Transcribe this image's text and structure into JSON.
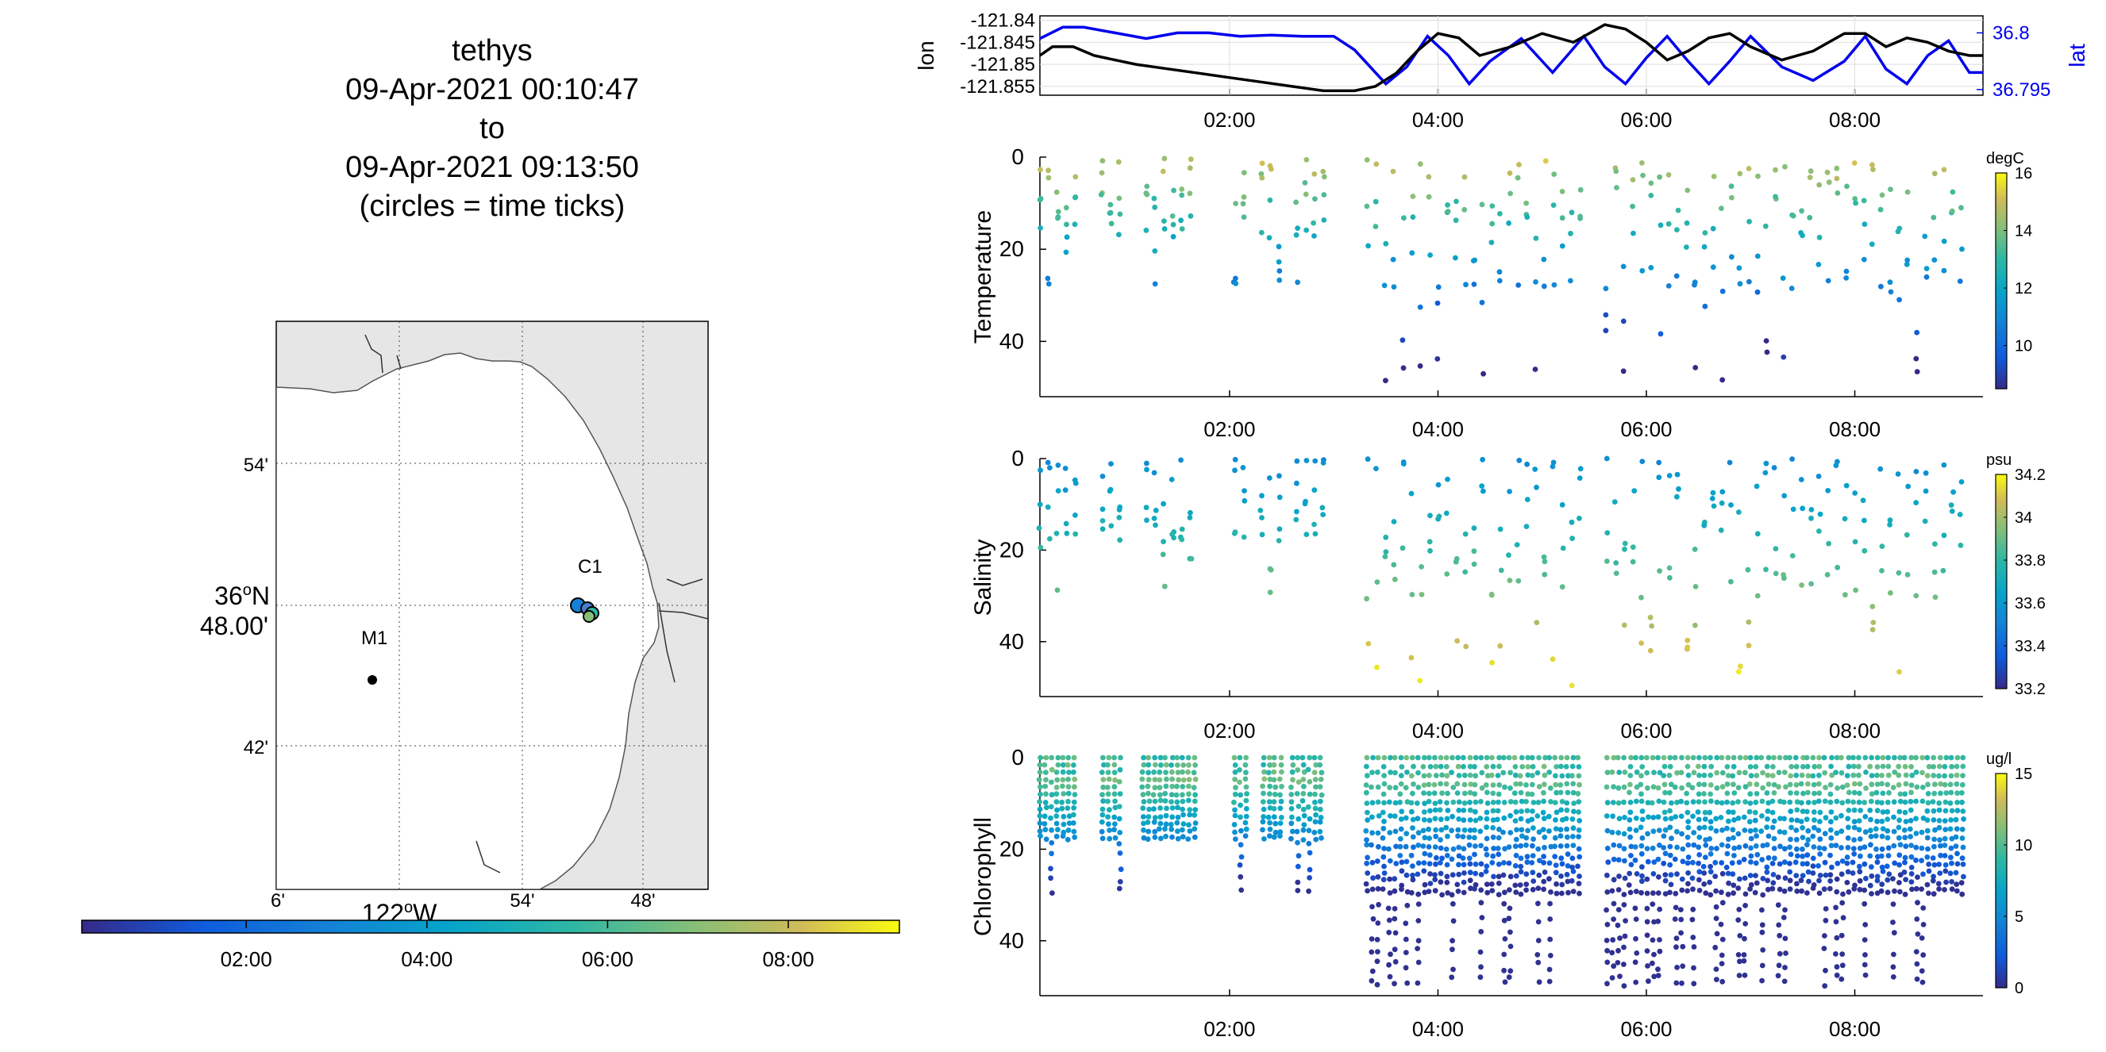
{
  "title_lines": [
    "tethys",
    "09-Apr-2021 00:10:47",
    "to",
    "09-Apr-2021 09:13:50",
    "(circles = time ticks)"
  ],
  "colors": {
    "lon": "#000000",
    "lat": "#0000ee",
    "map_land": "#e6e6e6",
    "map_water": "#ffffff"
  },
  "map": {
    "lat_ticks": [
      "54'",
      "36°N 48.00'",
      "42'"
    ],
    "lon_ticks": [
      "6'",
      "122°W",
      "54'",
      "48'"
    ],
    "lat_tick_main": "36",
    "lat_tick_deg": "o",
    "lat_tick_sub": "N",
    "lat_tick_min": "48.00'",
    "lon_tick_main": "122",
    "lon_tick_deg": "o",
    "lon_tick_sub": "W",
    "stations": [
      {
        "name": "M1"
      },
      {
        "name": "C1"
      }
    ]
  },
  "time_colorbar": {
    "ticks": [
      "02:00",
      "04:00",
      "06:00",
      "08:00"
    ],
    "range_hours": [
      0.18,
      9.23
    ]
  },
  "chart_data": [
    {
      "type": "line",
      "name": "lon-lat",
      "x_range_hours": [
        0.18,
        9.23
      ],
      "x_ticks": [
        "02:00",
        "04:00",
        "06:00",
        "08:00"
      ],
      "ylabel_left": "lon",
      "ylabel_right": "lat",
      "yticks_left": [
        "-121.84",
        "-121.845",
        "-121.85",
        "-121.855"
      ],
      "yticks_right": [
        "36.8",
        "36.795"
      ],
      "ylim_left": [
        -121.857,
        -121.839
      ],
      "ylim_right": [
        36.7945,
        36.8015
      ],
      "series": [
        {
          "name": "lon",
          "x": [
            0.18,
            0.3,
            0.5,
            0.7,
            0.9,
            1.1,
            1.4,
            1.7,
            2.0,
            2.3,
            2.6,
            2.9,
            3.2,
            3.4,
            3.6,
            3.8,
            4.0,
            4.2,
            4.4,
            4.7,
            5.0,
            5.3,
            5.6,
            5.8,
            6.0,
            6.2,
            6.4,
            6.6,
            6.8,
            7.0,
            7.3,
            7.6,
            7.9,
            8.1,
            8.3,
            8.5,
            8.7,
            8.9,
            9.1,
            9.23
          ],
          "values": [
            -121.848,
            -121.846,
            -121.846,
            -121.848,
            -121.849,
            -121.85,
            -121.851,
            -121.852,
            -121.853,
            -121.854,
            -121.855,
            -121.856,
            -121.856,
            -121.855,
            -121.852,
            -121.847,
            -121.843,
            -121.844,
            -121.848,
            -121.846,
            -121.843,
            -121.845,
            -121.841,
            -121.842,
            -121.845,
            -121.849,
            -121.847,
            -121.844,
            -121.843,
            -121.846,
            -121.849,
            -121.847,
            -121.843,
            -121.843,
            -121.846,
            -121.844,
            -121.845,
            -121.847,
            -121.848,
            -121.848
          ]
        },
        {
          "name": "lat",
          "x": [
            0.18,
            0.4,
            0.6,
            0.9,
            1.2,
            1.5,
            1.8,
            2.1,
            2.4,
            2.7,
            3.0,
            3.2,
            3.5,
            3.7,
            3.9,
            4.1,
            4.3,
            4.5,
            4.8,
            5.1,
            5.4,
            5.6,
            5.8,
            6.0,
            6.2,
            6.4,
            6.6,
            6.8,
            7.0,
            7.3,
            7.6,
            7.9,
            8.1,
            8.3,
            8.5,
            8.7,
            8.9,
            9.1,
            9.23
          ],
          "values": [
            36.7995,
            36.8005,
            36.8005,
            36.8,
            36.7995,
            36.8,
            36.8,
            36.7997,
            36.7998,
            36.7997,
            36.7997,
            36.7985,
            36.7955,
            36.797,
            36.7997,
            36.798,
            36.7955,
            36.7975,
            36.7995,
            36.7965,
            36.7997,
            36.797,
            36.7955,
            36.7978,
            36.7997,
            36.7975,
            36.7955,
            36.7975,
            36.7997,
            36.797,
            36.7958,
            36.7975,
            36.7997,
            36.7968,
            36.7955,
            36.798,
            36.7993,
            36.7965,
            36.7965
          ]
        }
      ]
    },
    {
      "type": "scatter",
      "ylabel": "Temperature",
      "colorbar_unit": "degC",
      "colorbar_ticks": [
        "16",
        "14",
        "12",
        "10"
      ],
      "colorbar_values": [
        16,
        14,
        12,
        10
      ],
      "clim": [
        8.5,
        16
      ],
      "ylim": [
        0,
        52
      ],
      "yticks": [
        "0",
        "20",
        "40"
      ],
      "x_ticks": [
        "02:00",
        "04:00",
        "06:00",
        "08:00"
      ],
      "x_range_hours": [
        0.18,
        9.23
      ]
    },
    {
      "type": "scatter",
      "ylabel": "Salinity",
      "colorbar_unit": "psu",
      "colorbar_ticks": [
        "34.2",
        "34",
        "33.8",
        "33.6",
        "33.4",
        "33.2"
      ],
      "colorbar_values": [
        34.2,
        34,
        33.8,
        33.6,
        33.4,
        33.2
      ],
      "clim": [
        33.2,
        34.2
      ],
      "ylim": [
        0,
        52
      ],
      "yticks": [
        "0",
        "20",
        "40"
      ],
      "x_ticks": [
        "02:00",
        "04:00",
        "06:00",
        "08:00"
      ],
      "x_range_hours": [
        0.18,
        9.23
      ]
    },
    {
      "type": "scatter",
      "ylabel": "Chlorophyll",
      "colorbar_unit": "ug/l",
      "colorbar_ticks": [
        "15",
        "10",
        "5",
        "0"
      ],
      "colorbar_values": [
        15,
        10,
        5,
        0
      ],
      "clim": [
        0,
        15
      ],
      "ylim": [
        0,
        52
      ],
      "yticks": [
        "0",
        "20",
        "40"
      ],
      "x_ticks": [
        "02:00",
        "04:00",
        "06:00",
        "08:00"
      ],
      "x_range_hours": [
        0.18,
        9.23
      ]
    }
  ]
}
